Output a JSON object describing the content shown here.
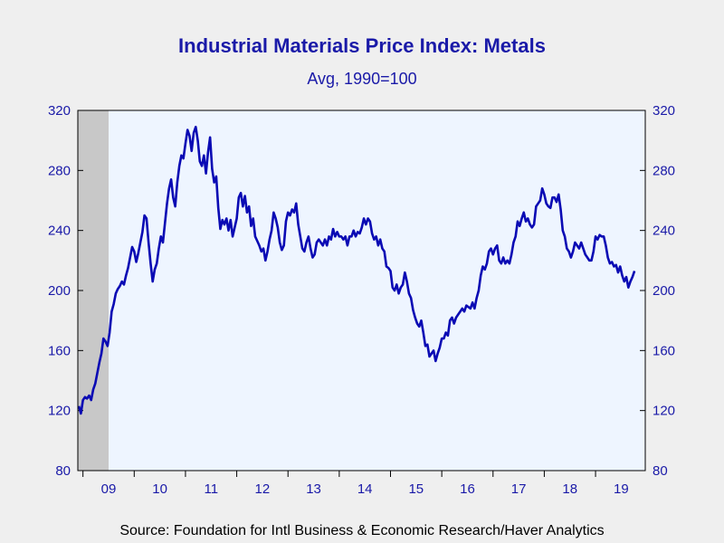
{
  "chart_data": {
    "type": "line",
    "title": "Industrial Materials Price Index: Metals",
    "subtitle": "Avg, 1990=100",
    "source": "Source:  Foundation for Intl Business & Economic Research/Haver Analytics",
    "ylim": [
      80,
      320
    ],
    "yticks": [
      80,
      120,
      160,
      200,
      240,
      280,
      320
    ],
    "y_axis_position": "both",
    "x_axis": {
      "start": 2008.9,
      "end": 2019.97,
      "ticks": [
        {
          "label": "09",
          "year": 2009
        },
        {
          "label": "10",
          "year": 2010
        },
        {
          "label": "11",
          "year": 2011
        },
        {
          "label": "12",
          "year": 2012
        },
        {
          "label": "13",
          "year": 2013
        },
        {
          "label": "14",
          "year": 2014
        },
        {
          "label": "15",
          "year": 2015
        },
        {
          "label": "16",
          "year": 2016
        },
        {
          "label": "17",
          "year": 2017
        },
        {
          "label": "18",
          "year": 2018
        },
        {
          "label": "19",
          "year": 2019
        }
      ]
    },
    "recession_shading": {
      "start": 2008.9,
      "end": 2009.5
    },
    "grid": false,
    "colors": {
      "line": "#0a0ab4",
      "text": "#1a1aa8",
      "plot_background": "#eef5ff",
      "recession": "#c8c8c8"
    },
    "series": [
      {
        "points": [
          [
            2008.92,
            123
          ],
          [
            2008.96,
            118
          ],
          [
            2009.0,
            127
          ],
          [
            2009.04,
            129
          ],
          [
            2009.08,
            128
          ],
          [
            2009.12,
            130
          ],
          [
            2009.16,
            127
          ],
          [
            2009.2,
            134
          ],
          [
            2009.24,
            138
          ],
          [
            2009.28,
            145
          ],
          [
            2009.32,
            152
          ],
          [
            2009.36,
            158
          ],
          [
            2009.4,
            168
          ],
          [
            2009.44,
            166
          ],
          [
            2009.48,
            163
          ],
          [
            2009.52,
            172
          ],
          [
            2009.56,
            186
          ],
          [
            2009.6,
            191
          ],
          [
            2009.64,
            198
          ],
          [
            2009.68,
            201
          ],
          [
            2009.72,
            203
          ],
          [
            2009.76,
            206
          ],
          [
            2009.8,
            204
          ],
          [
            2009.84,
            210
          ],
          [
            2009.88,
            215
          ],
          [
            2009.92,
            222
          ],
          [
            2009.96,
            229
          ],
          [
            2010.0,
            226
          ],
          [
            2010.04,
            219
          ],
          [
            2010.08,
            225
          ],
          [
            2010.12,
            232
          ],
          [
            2010.16,
            239
          ],
          [
            2010.2,
            250
          ],
          [
            2010.24,
            248
          ],
          [
            2010.28,
            232
          ],
          [
            2010.32,
            218
          ],
          [
            2010.36,
            206
          ],
          [
            2010.4,
            214
          ],
          [
            2010.44,
            218
          ],
          [
            2010.48,
            228
          ],
          [
            2010.52,
            236
          ],
          [
            2010.56,
            232
          ],
          [
            2010.6,
            245
          ],
          [
            2010.64,
            258
          ],
          [
            2010.68,
            268
          ],
          [
            2010.72,
            274
          ],
          [
            2010.76,
            262
          ],
          [
            2010.8,
            256
          ],
          [
            2010.84,
            272
          ],
          [
            2010.88,
            283
          ],
          [
            2010.92,
            290
          ],
          [
            2010.96,
            288
          ],
          [
            2011.0,
            298
          ],
          [
            2011.04,
            307
          ],
          [
            2011.08,
            303
          ],
          [
            2011.12,
            293
          ],
          [
            2011.16,
            305
          ],
          [
            2011.2,
            309
          ],
          [
            2011.24,
            300
          ],
          [
            2011.28,
            286
          ],
          [
            2011.32,
            283
          ],
          [
            2011.36,
            290
          ],
          [
            2011.4,
            278
          ],
          [
            2011.44,
            292
          ],
          [
            2011.48,
            302
          ],
          [
            2011.52,
            281
          ],
          [
            2011.56,
            272
          ],
          [
            2011.6,
            276
          ],
          [
            2011.64,
            255
          ],
          [
            2011.68,
            241
          ],
          [
            2011.72,
            247
          ],
          [
            2011.76,
            244
          ],
          [
            2011.8,
            248
          ],
          [
            2011.84,
            240
          ],
          [
            2011.88,
            247
          ],
          [
            2011.92,
            236
          ],
          [
            2011.96,
            242
          ],
          [
            2012.0,
            248
          ],
          [
            2012.04,
            262
          ],
          [
            2012.08,
            265
          ],
          [
            2012.12,
            256
          ],
          [
            2012.16,
            263
          ],
          [
            2012.2,
            252
          ],
          [
            2012.24,
            256
          ],
          [
            2012.28,
            243
          ],
          [
            2012.32,
            248
          ],
          [
            2012.36,
            236
          ],
          [
            2012.4,
            233
          ],
          [
            2012.44,
            230
          ],
          [
            2012.48,
            226
          ],
          [
            2012.52,
            228
          ],
          [
            2012.56,
            220
          ],
          [
            2012.6,
            226
          ],
          [
            2012.64,
            234
          ],
          [
            2012.68,
            240
          ],
          [
            2012.72,
            252
          ],
          [
            2012.76,
            248
          ],
          [
            2012.8,
            242
          ],
          [
            2012.84,
            232
          ],
          [
            2012.88,
            227
          ],
          [
            2012.92,
            230
          ],
          [
            2012.96,
            246
          ],
          [
            2013.0,
            252
          ],
          [
            2013.04,
            250
          ],
          [
            2013.08,
            254
          ],
          [
            2013.12,
            252
          ],
          [
            2013.16,
            258
          ],
          [
            2013.2,
            244
          ],
          [
            2013.24,
            236
          ],
          [
            2013.28,
            228
          ],
          [
            2013.32,
            226
          ],
          [
            2013.36,
            232
          ],
          [
            2013.4,
            236
          ],
          [
            2013.44,
            228
          ],
          [
            2013.48,
            222
          ],
          [
            2013.52,
            224
          ],
          [
            2013.56,
            232
          ],
          [
            2013.6,
            234
          ],
          [
            2013.64,
            232
          ],
          [
            2013.68,
            230
          ],
          [
            2013.72,
            234
          ],
          [
            2013.76,
            230
          ],
          [
            2013.8,
            236
          ],
          [
            2013.84,
            234
          ],
          [
            2013.88,
            241
          ],
          [
            2013.92,
            236
          ],
          [
            2013.96,
            239
          ],
          [
            2014.0,
            236
          ],
          [
            2014.04,
            236
          ],
          [
            2014.08,
            234
          ],
          [
            2014.12,
            236
          ],
          [
            2014.16,
            230
          ],
          [
            2014.2,
            236
          ],
          [
            2014.24,
            236
          ],
          [
            2014.28,
            240
          ],
          [
            2014.32,
            236
          ],
          [
            2014.36,
            239
          ],
          [
            2014.4,
            238
          ],
          [
            2014.44,
            242
          ],
          [
            2014.48,
            248
          ],
          [
            2014.52,
            244
          ],
          [
            2014.56,
            248
          ],
          [
            2014.6,
            246
          ],
          [
            2014.64,
            238
          ],
          [
            2014.68,
            234
          ],
          [
            2014.72,
            236
          ],
          [
            2014.76,
            230
          ],
          [
            2014.8,
            234
          ],
          [
            2014.84,
            228
          ],
          [
            2014.88,
            226
          ],
          [
            2014.92,
            216
          ],
          [
            2014.96,
            215
          ],
          [
            2015.0,
            213
          ],
          [
            2015.04,
            202
          ],
          [
            2015.08,
            200
          ],
          [
            2015.12,
            204
          ],
          [
            2015.16,
            198
          ],
          [
            2015.2,
            202
          ],
          [
            2015.24,
            204
          ],
          [
            2015.28,
            212
          ],
          [
            2015.32,
            206
          ],
          [
            2015.36,
            198
          ],
          [
            2015.4,
            195
          ],
          [
            2015.44,
            187
          ],
          [
            2015.48,
            182
          ],
          [
            2015.52,
            178
          ],
          [
            2015.56,
            176
          ],
          [
            2015.6,
            180
          ],
          [
            2015.64,
            172
          ],
          [
            2015.68,
            163
          ],
          [
            2015.72,
            164
          ],
          [
            2015.76,
            156
          ],
          [
            2015.8,
            158
          ],
          [
            2015.84,
            160
          ],
          [
            2015.88,
            153
          ],
          [
            2015.92,
            158
          ],
          [
            2015.96,
            162
          ],
          [
            2016.0,
            168
          ],
          [
            2016.04,
            168
          ],
          [
            2016.08,
            172
          ],
          [
            2016.12,
            170
          ],
          [
            2016.16,
            180
          ],
          [
            2016.2,
            182
          ],
          [
            2016.24,
            178
          ],
          [
            2016.28,
            182
          ],
          [
            2016.32,
            184
          ],
          [
            2016.36,
            186
          ],
          [
            2016.4,
            188
          ],
          [
            2016.44,
            186
          ],
          [
            2016.48,
            190
          ],
          [
            2016.52,
            189
          ],
          [
            2016.56,
            188
          ],
          [
            2016.6,
            192
          ],
          [
            2016.64,
            188
          ],
          [
            2016.68,
            195
          ],
          [
            2016.72,
            200
          ],
          [
            2016.76,
            210
          ],
          [
            2016.8,
            216
          ],
          [
            2016.84,
            214
          ],
          [
            2016.88,
            218
          ],
          [
            2016.92,
            226
          ],
          [
            2016.96,
            228
          ],
          [
            2017.0,
            224
          ],
          [
            2017.04,
            228
          ],
          [
            2017.08,
            230
          ],
          [
            2017.12,
            220
          ],
          [
            2017.16,
            218
          ],
          [
            2017.2,
            222
          ],
          [
            2017.24,
            218
          ],
          [
            2017.28,
            220
          ],
          [
            2017.32,
            218
          ],
          [
            2017.36,
            224
          ],
          [
            2017.4,
            232
          ],
          [
            2017.44,
            236
          ],
          [
            2017.48,
            246
          ],
          [
            2017.52,
            243
          ],
          [
            2017.56,
            248
          ],
          [
            2017.6,
            252
          ],
          [
            2017.64,
            246
          ],
          [
            2017.68,
            248
          ],
          [
            2017.72,
            244
          ],
          [
            2017.76,
            242
          ],
          [
            2017.8,
            244
          ],
          [
            2017.84,
            256
          ],
          [
            2017.88,
            258
          ],
          [
            2017.92,
            260
          ],
          [
            2017.96,
            268
          ],
          [
            2018.0,
            264
          ],
          [
            2018.04,
            258
          ],
          [
            2018.08,
            256
          ],
          [
            2018.12,
            255
          ],
          [
            2018.16,
            262
          ],
          [
            2018.2,
            262
          ],
          [
            2018.24,
            259
          ],
          [
            2018.28,
            264
          ],
          [
            2018.32,
            254
          ],
          [
            2018.36,
            240
          ],
          [
            2018.4,
            236
          ],
          [
            2018.44,
            228
          ],
          [
            2018.48,
            226
          ],
          [
            2018.52,
            222
          ],
          [
            2018.56,
            226
          ],
          [
            2018.6,
            232
          ],
          [
            2018.64,
            230
          ],
          [
            2018.68,
            228
          ],
          [
            2018.72,
            232
          ],
          [
            2018.76,
            228
          ],
          [
            2018.8,
            224
          ],
          [
            2018.84,
            222
          ],
          [
            2018.88,
            220
          ],
          [
            2018.92,
            220
          ],
          [
            2018.96,
            226
          ],
          [
            2019.0,
            236
          ],
          [
            2019.04,
            234
          ],
          [
            2019.08,
            237
          ],
          [
            2019.12,
            236
          ],
          [
            2019.16,
            236
          ],
          [
            2019.2,
            230
          ],
          [
            2019.24,
            222
          ],
          [
            2019.28,
            218
          ],
          [
            2019.32,
            219
          ],
          [
            2019.36,
            216
          ],
          [
            2019.4,
            217
          ],
          [
            2019.44,
            212
          ],
          [
            2019.48,
            216
          ],
          [
            2019.52,
            210
          ],
          [
            2019.56,
            206
          ],
          [
            2019.6,
            209
          ],
          [
            2019.64,
            202
          ],
          [
            2019.68,
            206
          ],
          [
            2019.72,
            209
          ],
          [
            2019.76,
            213
          ]
        ]
      }
    ]
  }
}
